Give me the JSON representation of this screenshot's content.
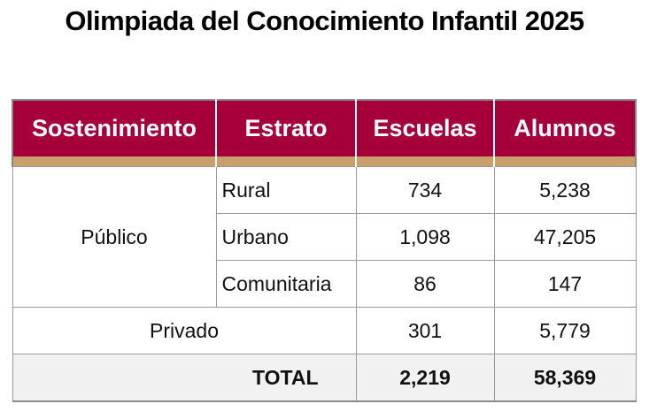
{
  "title": "Olimpiada del Conocimiento Infantil 2025",
  "colors": {
    "header_bg": "#a6003a",
    "header_text": "#ffffff",
    "band": "#c9a06b",
    "total_row_bg": "#f1f1f1"
  },
  "table": {
    "headers": [
      "Sostenimiento",
      "Estrato",
      "Escuelas",
      "Alumnos"
    ],
    "publico": {
      "label": "Público",
      "rows": [
        {
          "estrato": "Rural",
          "escuelas": "734",
          "alumnos": "5,238"
        },
        {
          "estrato": "Urbano",
          "escuelas": "1,098",
          "alumnos": "47,205"
        },
        {
          "estrato": "Comunitaria",
          "escuelas": "86",
          "alumnos": "147"
        }
      ]
    },
    "privado": {
      "label": "Privado",
      "escuelas": "301",
      "alumnos": "5,779"
    },
    "total": {
      "label": "TOTAL",
      "escuelas": "2,219",
      "alumnos": "58,369"
    }
  }
}
